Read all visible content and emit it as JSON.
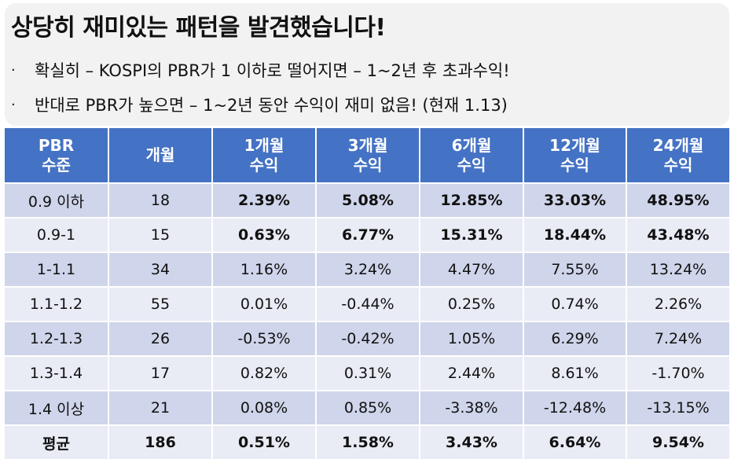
{
  "title": "상당히 재미있는 패턴을 발견했습니다!",
  "bullets": [
    {
      "marker": "·",
      "text": "확실히 – KOSPI의 PBR가 1 이하로 떨어지면 – 1~2년 후 초과수익!"
    },
    {
      "marker": "·",
      "text": "반대로 PBR가 높으면 – 1~2년 동안 수익이 재미 없음! (현재 1.13)"
    }
  ],
  "table": {
    "headers": [
      {
        "line1": "PBR",
        "line2": "수준"
      },
      {
        "line1": "개월",
        "line2": ""
      },
      {
        "line1": "1개월",
        "line2": "수익"
      },
      {
        "line1": "3개월",
        "line2": "수익"
      },
      {
        "line1": "6개월",
        "line2": "수익"
      },
      {
        "line1": "12개월",
        "line2": "수익"
      },
      {
        "line1": "24개월",
        "line2": "수익"
      }
    ],
    "rows": [
      [
        "0.9 이하",
        "18",
        "2.39%",
        "5.08%",
        "12.85%",
        "33.03%",
        "48.95%"
      ],
      [
        "0.9-1",
        "15",
        "0.63%",
        "6.77%",
        "15.31%",
        "18.44%",
        "43.48%"
      ],
      [
        "1-1.1",
        "34",
        "1.16%",
        "3.24%",
        "4.47%",
        "7.55%",
        "13.24%"
      ],
      [
        "1.1-1.2",
        "55",
        "0.01%",
        "-0.44%",
        "0.25%",
        "0.74%",
        "2.26%"
      ],
      [
        "1.2-1.3",
        "26",
        "-0.53%",
        "-0.42%",
        "1.05%",
        "6.29%",
        "7.24%"
      ],
      [
        "1.3-1.4",
        "17",
        "0.82%",
        "0.31%",
        "2.44%",
        "8.61%",
        "-1.70%"
      ],
      [
        "1.4 이상",
        "21",
        "0.08%",
        "0.85%",
        "-3.38%",
        "-12.48%",
        "-13.15%"
      ],
      [
        "평균",
        "186",
        "0.51%",
        "1.58%",
        "3.43%",
        "6.64%",
        "9.54%"
      ]
    ],
    "bold_cells": [
      [
        0,
        2
      ],
      [
        0,
        3
      ],
      [
        0,
        4
      ],
      [
        0,
        5
      ],
      [
        0,
        6
      ],
      [
        1,
        2
      ],
      [
        1,
        3
      ],
      [
        1,
        4
      ],
      [
        1,
        5
      ],
      [
        1,
        6
      ]
    ],
    "colors": {
      "header_bg": "#4472c4",
      "row_odd": "#cfd5ea",
      "row_even": "#e9ebf5",
      "panel_bg": "#f2f2f2"
    }
  }
}
